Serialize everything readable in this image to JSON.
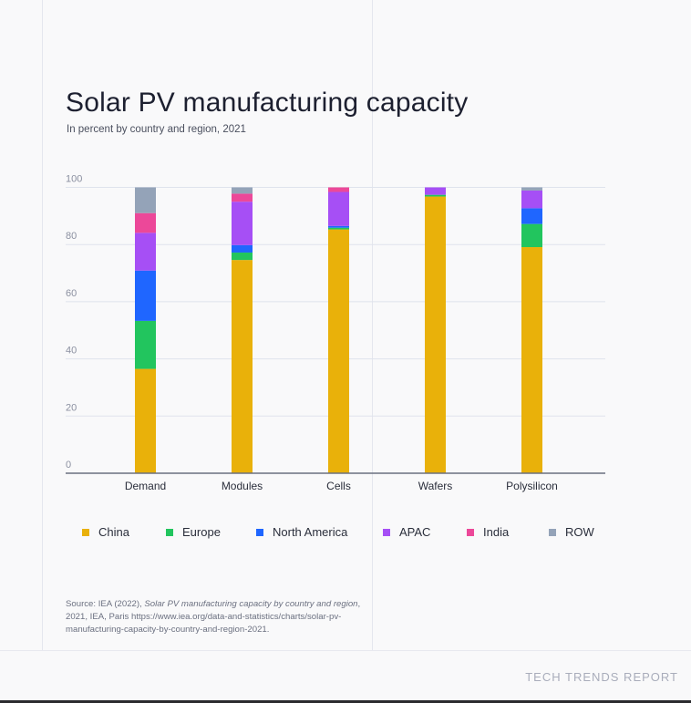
{
  "chart_data": {
    "type": "bar",
    "stacked": true,
    "title": "Solar PV manufacturing capacity",
    "subtitle": "In percent by country and region, 2021",
    "xlabel": "",
    "ylabel": "",
    "ylim": [
      0,
      100
    ],
    "yticks": [
      0,
      20,
      40,
      60,
      80,
      100
    ],
    "grid": true,
    "legend_position": "bottom",
    "categories": [
      "Demand",
      "Modules",
      "Cells",
      "Wafers",
      "Polysilicon"
    ],
    "series": [
      {
        "name": "China",
        "color": "#e9b10a",
        "values": [
          36.5,
          74.6,
          85.3,
          96.8,
          79.1
        ]
      },
      {
        "name": "Europe",
        "color": "#22c55e",
        "values": [
          16.8,
          2.6,
          0.6,
          0.6,
          8.1
        ]
      },
      {
        "name": "North America",
        "color": "#1f66ff",
        "values": [
          17.6,
          2.6,
          0.6,
          0,
          5.5
        ]
      },
      {
        "name": "APAC",
        "color": "#a64ff5",
        "values": [
          13.2,
          15.2,
          11.9,
          2.6,
          6.2
        ]
      },
      {
        "name": "India",
        "color": "#ec4899",
        "values": [
          6.9,
          2.8,
          1.6,
          0,
          0
        ]
      },
      {
        "name": "ROW",
        "color": "#94a3b8",
        "values": [
          9.0,
          2.2,
          0,
          0,
          1.1
        ]
      }
    ]
  },
  "source": {
    "prefix": "Source: IEA (2022), ",
    "italic_title": "Solar PV manufacturing capacity by country and region",
    "suffix": ", 2021, IEA, Paris https://www.iea.org/data-and-statistics/charts/solar-pv-manufacturing-capacity-by-country-and-region-2021."
  },
  "brand": "TECH TRENDS REPORT"
}
